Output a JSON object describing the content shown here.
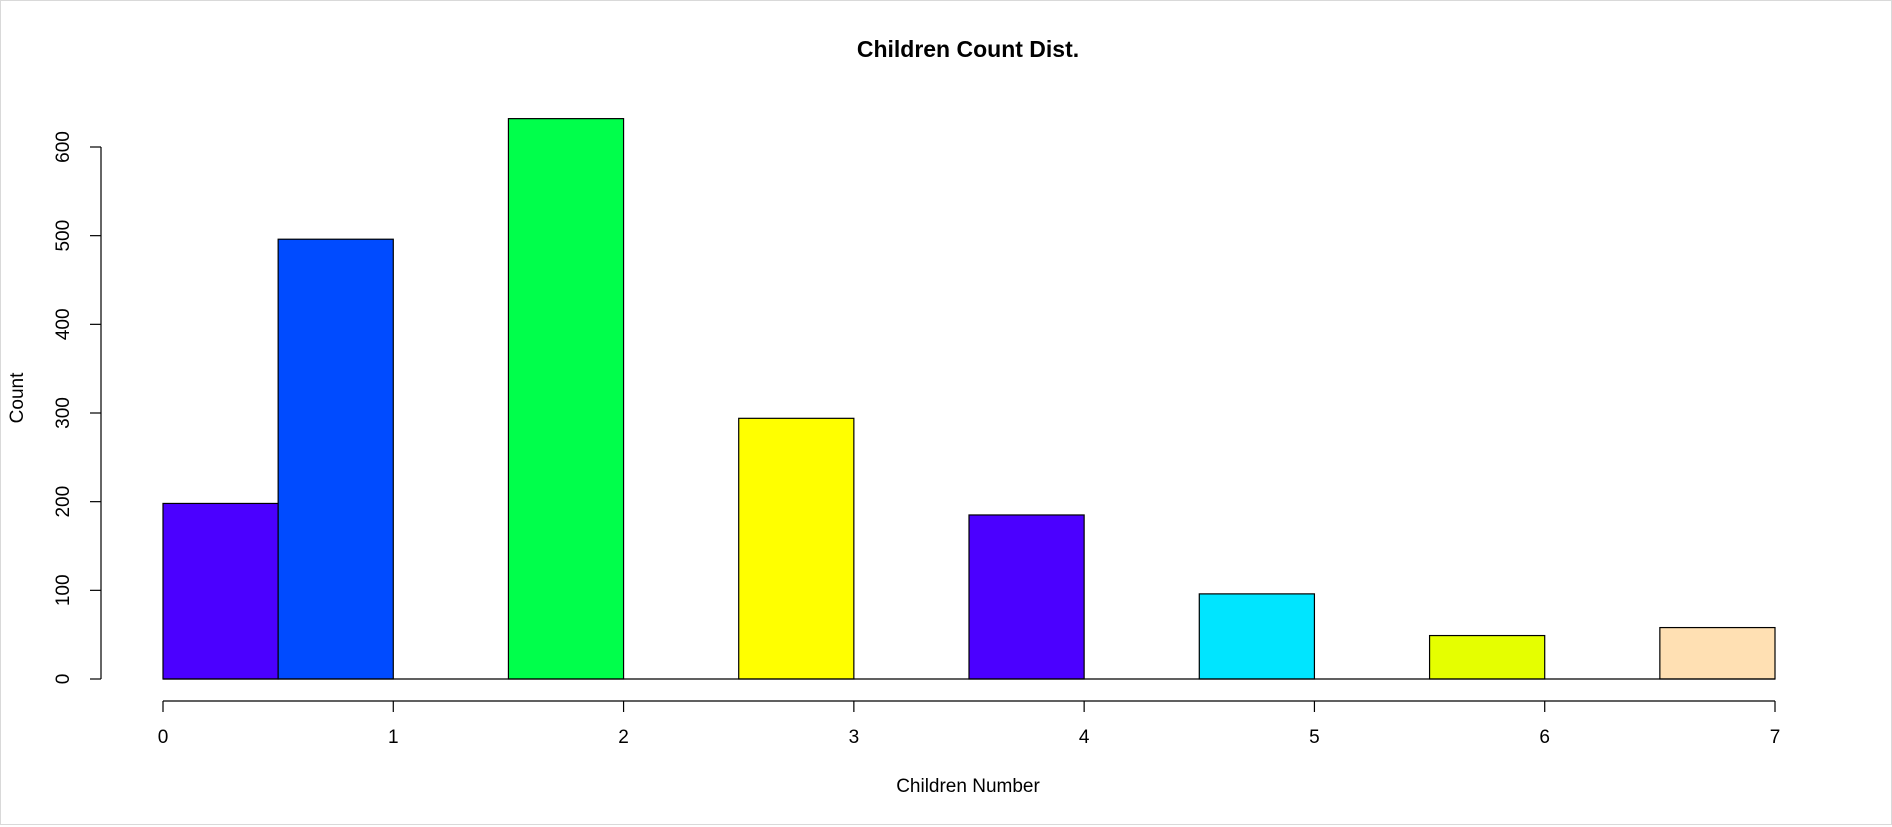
{
  "chart_data": {
    "type": "bar",
    "title": "Children Count Dist.",
    "xlabel": "Children Number",
    "ylabel": "Count",
    "x_ticks": [
      "0",
      "1",
      "2",
      "3",
      "4",
      "5",
      "6",
      "7"
    ],
    "y_ticks": [
      "0",
      "100",
      "200",
      "300",
      "400",
      "500",
      "600"
    ],
    "xlim": [
      0,
      7
    ],
    "ylim": [
      0,
      600
    ],
    "grid": false,
    "bars": [
      {
        "x_start": 0.0,
        "x_end": 0.5,
        "value": 198,
        "color": "#4B00FF"
      },
      {
        "x_start": 0.5,
        "x_end": 1.0,
        "value": 496,
        "color": "#004BFF"
      },
      {
        "x_start": 1.5,
        "x_end": 2.0,
        "value": 632,
        "color": "#00FF4B"
      },
      {
        "x_start": 2.5,
        "x_end": 3.0,
        "value": 294,
        "color": "#FFFF00"
      },
      {
        "x_start": 3.5,
        "x_end": 4.0,
        "value": 185,
        "color": "#4B00FF"
      },
      {
        "x_start": 4.5,
        "x_end": 5.0,
        "value": 96,
        "color": "#00E5FF"
      },
      {
        "x_start": 5.5,
        "x_end": 6.0,
        "value": 49,
        "color": "#E5FF00"
      },
      {
        "x_start": 6.5,
        "x_end": 7.0,
        "value": 58,
        "color": "#FFE0B3"
      }
    ]
  }
}
